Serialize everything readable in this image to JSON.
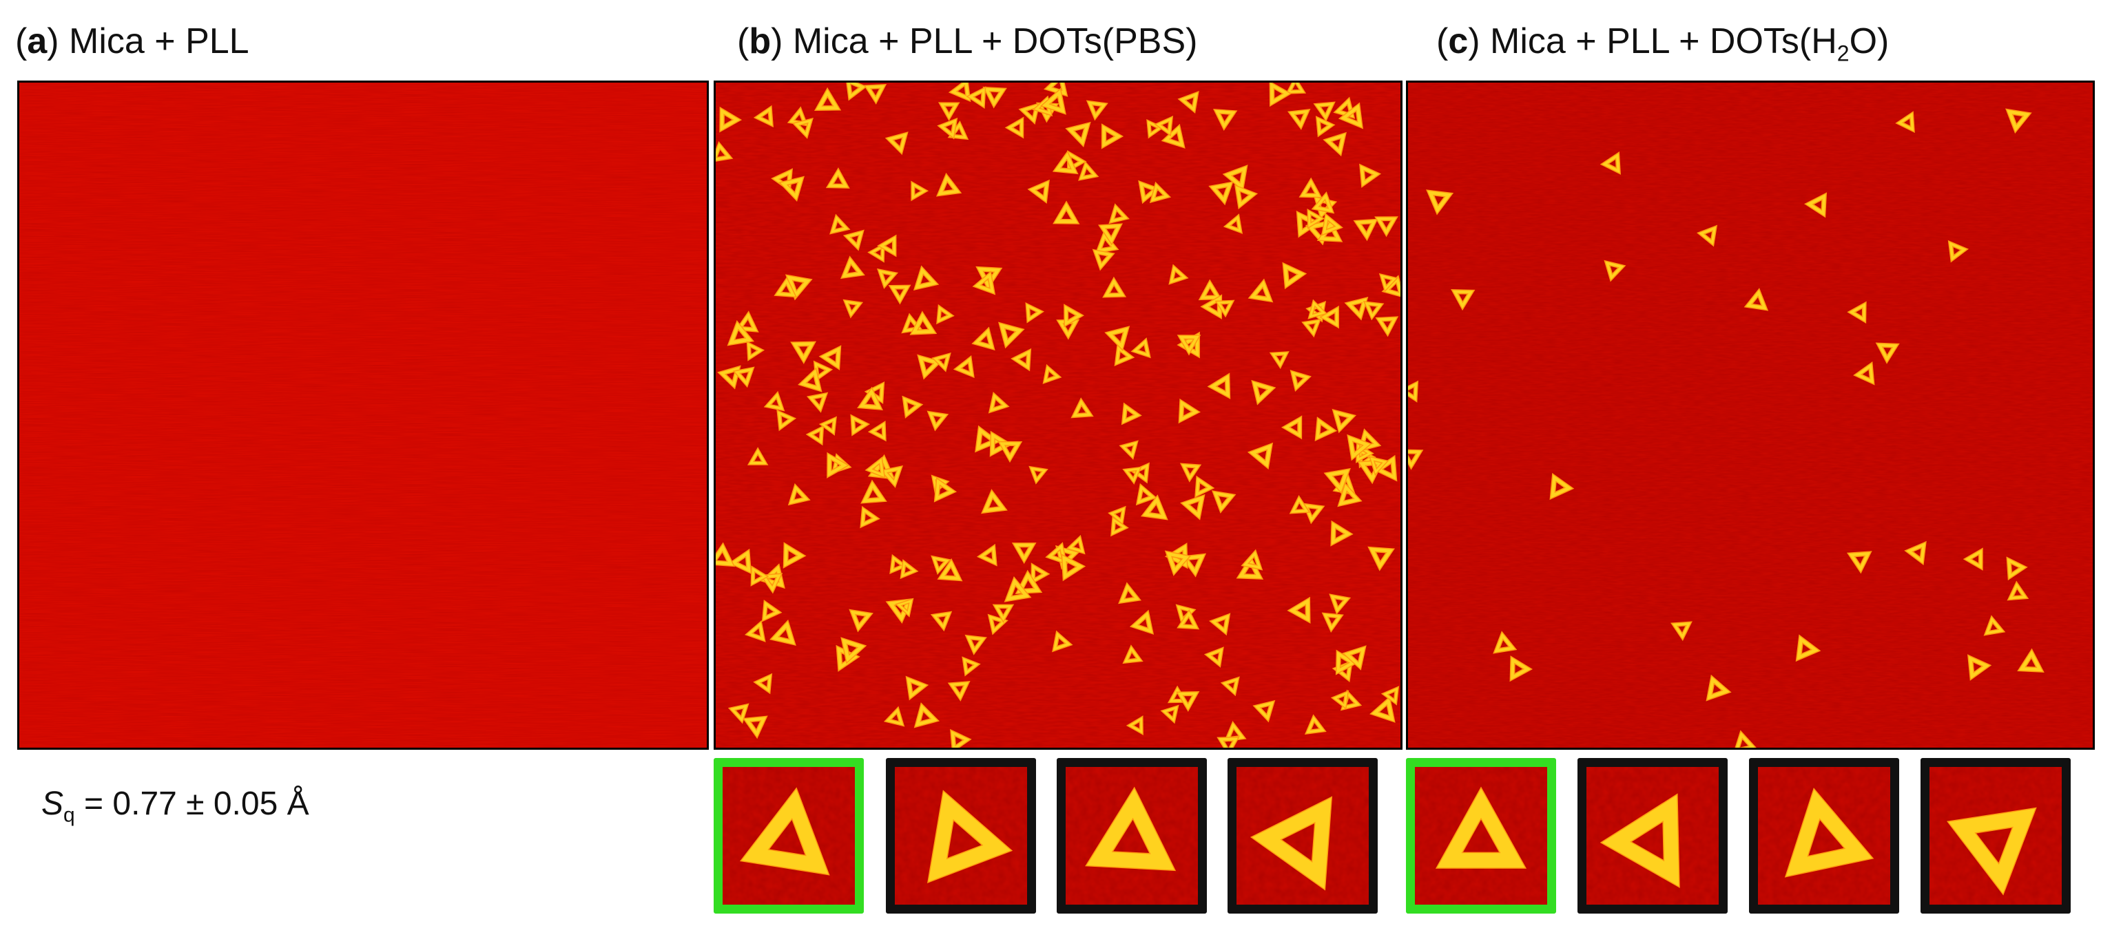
{
  "panels": [
    {
      "letter": "a",
      "title": "Mica + PLL"
    },
    {
      "letter": "b",
      "title": "Mica + PLL + DOTs(PBS)"
    },
    {
      "letter": "c",
      "title_pre": "Mica + PLL + DOTs(H",
      "title_sub": "2",
      "title_post": "O)"
    }
  ],
  "roughness": {
    "symbol": "S",
    "subscript": "q",
    "value": "= 0.77 ± 0.05 Å"
  },
  "colors": {
    "background_red": "#d40a00",
    "origami_yellow": "#ffd21f",
    "highlight_border": "#33dd22",
    "default_border": "#111111"
  },
  "thumbnails": {
    "b": [
      {
        "highlight": true
      },
      {
        "highlight": false
      },
      {
        "highlight": false
      },
      {
        "highlight": false
      }
    ],
    "c": [
      {
        "highlight": true
      },
      {
        "highlight": false
      },
      {
        "highlight": false
      },
      {
        "highlight": false
      }
    ]
  }
}
